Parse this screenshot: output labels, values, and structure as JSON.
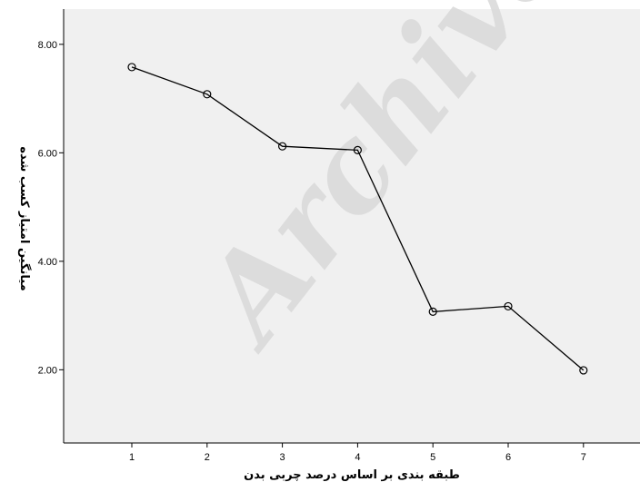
{
  "watermark": {
    "text": "Archive"
  },
  "chart_data": {
    "type": "line",
    "title": "",
    "xlabel": "طبقه بندی بر اساس درصد چربی بدن",
    "ylabel": "میانگین امتیاز کسب شده",
    "categories": [
      "1",
      "2",
      "3",
      "4",
      "5",
      "6",
      "7"
    ],
    "values": [
      7.58,
      7.08,
      6.12,
      6.05,
      3.07,
      3.17,
      1.99
    ],
    "ylim": [
      0.65,
      8.65
    ],
    "yticks": [
      2.0,
      4.0,
      6.0,
      8.0
    ],
    "yticklabels": [
      "2.00",
      "4.00",
      "6.00",
      "8.00"
    ],
    "grid": false,
    "colors": {
      "plot_background": "#f0f0f0",
      "line": "#000000",
      "axis": "#000000"
    }
  }
}
